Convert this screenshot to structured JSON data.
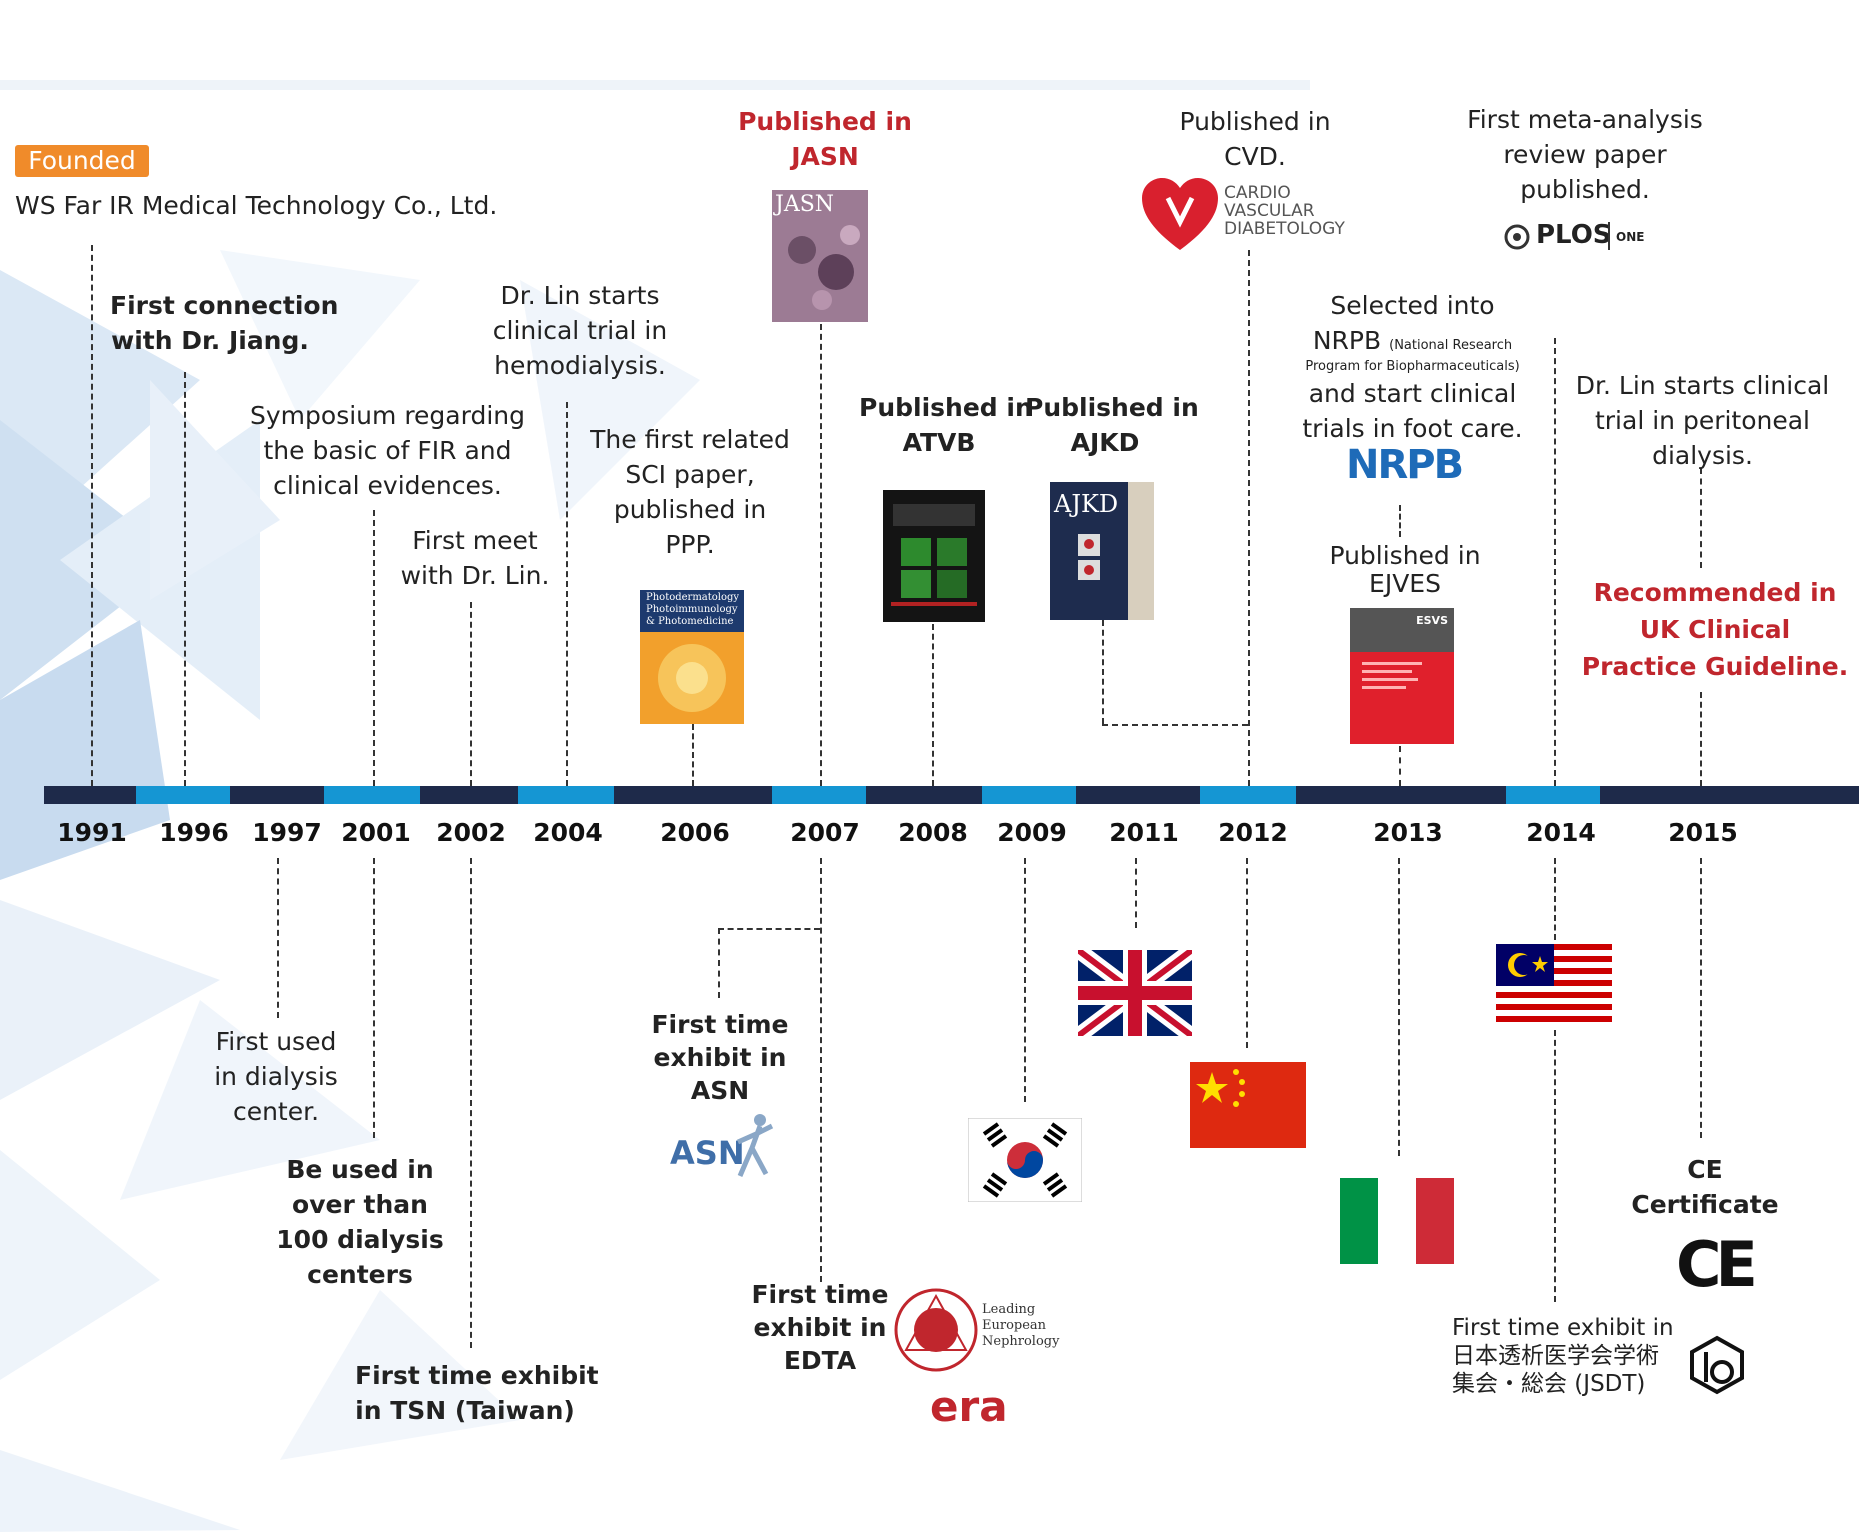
{
  "founded": {
    "badge": "Founded",
    "company": "WS Far IR Medical Technology Co., Ltd."
  },
  "timeline": {
    "years": [
      "1991",
      "1996",
      "1997",
      "2001",
      "2002",
      "2004",
      "2006",
      "2007",
      "2008",
      "2009",
      "2011",
      "2012",
      "2013",
      "2014",
      "2015"
    ]
  },
  "events_top": {
    "e1996": [
      "First connection",
      "with Dr. Jiang."
    ],
    "e2001": [
      "Symposium regarding",
      "the basic of FIR and",
      "clinical evidences."
    ],
    "e2002": [
      "First meet",
      "with Dr. Lin."
    ],
    "e2004": [
      "Dr. Lin starts",
      "clinical trial in",
      "hemodialysis."
    ],
    "e2006": [
      "The first related",
      "SCI paper,",
      "published in",
      "PPP."
    ],
    "e2007": [
      "Published in",
      "JASN"
    ],
    "e2008": [
      "Published in",
      "ATVB"
    ],
    "e2009": [
      "Published in",
      "AJKD"
    ],
    "e2012": [
      "Published in",
      "CVD."
    ],
    "e2013a": [
      "Selected into",
      "NRPB",
      "(National Research",
      "Program for Biopharmaceuticals)",
      "and start clinical",
      "trials in foot care."
    ],
    "e2013b": [
      "Published in",
      "EJVES"
    ],
    "e2014a": [
      "First meta-analysis",
      "review paper",
      "published."
    ],
    "e2014b": [
      "Dr. Lin starts clinical",
      "trial in peritoneal",
      "dialysis."
    ],
    "e2015": [
      "Recommended in",
      "UK Clinical",
      "Practice Guideline."
    ]
  },
  "events_bottom": {
    "e1997": [
      "First used",
      "in dialysis",
      "center."
    ],
    "e2001": [
      "Be used in",
      "over than",
      "100 dialysis",
      "centers"
    ],
    "e2002": [
      "First time exhibit",
      "in TSN (Taiwan)"
    ],
    "e2006": [
      "First time",
      "exhibit in",
      "ASN"
    ],
    "e2007": [
      "First time",
      "exhibit in",
      "EDTA"
    ],
    "e2014": [
      "First time exhibit in",
      "日本透析医学会学術",
      "集会・総会 (JSDT)"
    ],
    "e2015": [
      "CE",
      "Certificate"
    ]
  },
  "logos": {
    "asn": "ASN",
    "plos": "PLOS",
    "plos_sub": "ONE",
    "cvd": [
      "CARDIO",
      "VASCULAR",
      "DIABETOLOGY"
    ],
    "nrpb": "NRPB",
    "edta": [
      "Leading",
      "European",
      "Nephrology"
    ],
    "ce": "CE",
    "jasn": "JASN",
    "ajkd": "AJKD",
    "ppp": [
      "Photodermatology",
      "Photoimmunology",
      "& Photomedicine"
    ],
    "ejves": "ESVS",
    "era": "era"
  },
  "colors": {
    "dark": "#1e2a4a",
    "light": "#1596d3",
    "orange": "#f08b2a",
    "red": "#c0262d"
  }
}
